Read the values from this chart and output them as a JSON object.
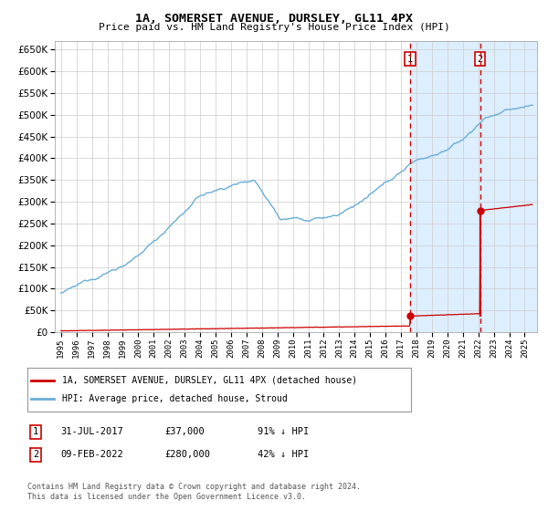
{
  "title": "1A, SOMERSET AVENUE, DURSLEY, GL11 4PX",
  "subtitle": "Price paid vs. HM Land Registry's House Price Index (HPI)",
  "legend_line1": "1A, SOMERSET AVENUE, DURSLEY, GL11 4PX (detached house)",
  "legend_line2": "HPI: Average price, detached house, Stroud",
  "annotation1_label": "1",
  "annotation1_date": "31-JUL-2017",
  "annotation1_price": "£37,000",
  "annotation1_hpi": "91% ↓ HPI",
  "annotation2_label": "2",
  "annotation2_date": "09-FEB-2022",
  "annotation2_price": "£280,000",
  "annotation2_hpi": "42% ↓ HPI",
  "footer": "Contains HM Land Registry data © Crown copyright and database right 2024.\nThis data is licensed under the Open Government Licence v3.0.",
  "hpi_color": "#6baed6",
  "price_color": "#cc0000",
  "dashed_color": "#cc0000",
  "background_highlight": "#ddeeff",
  "ylim": [
    0,
    670000
  ],
  "yticks": [
    0,
    50000,
    100000,
    150000,
    200000,
    250000,
    300000,
    350000,
    400000,
    450000,
    500000,
    550000,
    600000,
    650000
  ],
  "xtick_years": [
    1995,
    1996,
    1997,
    1998,
    1999,
    2000,
    2001,
    2002,
    2003,
    2004,
    2005,
    2006,
    2007,
    2008,
    2009,
    2010,
    2011,
    2012,
    2013,
    2014,
    2015,
    2016,
    2017,
    2018,
    2019,
    2020,
    2021,
    2022,
    2023,
    2024,
    2025
  ],
  "marker1_year": 2017.58,
  "marker1_price": 37000,
  "marker2_year": 2022.11,
  "marker2_price": 280000,
  "xlim_left": 1994.6,
  "xlim_right": 2025.8
}
